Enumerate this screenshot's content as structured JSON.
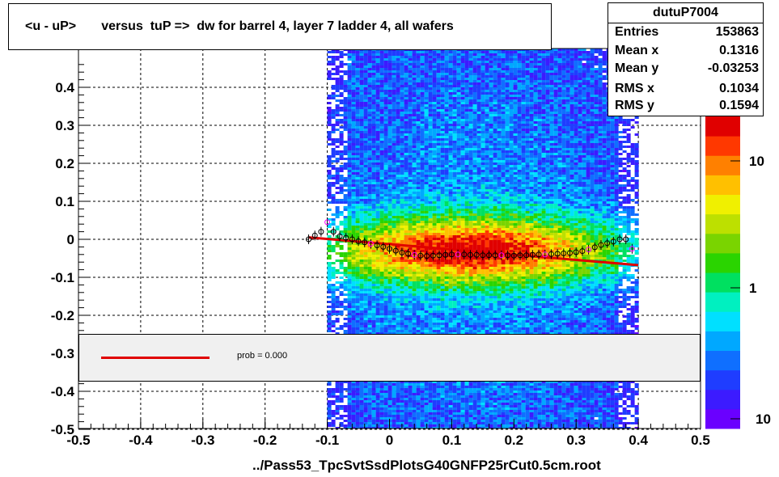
{
  "title": "<u - uP>       versus  tuP =>  dw for barrel 4, layer 7 ladder 4, all wafers",
  "stats": {
    "name": "dutuP7004",
    "rows": [
      {
        "label": "Entries",
        "value": "153863"
      },
      {
        "label": "Mean x",
        "value": "0.1316"
      },
      {
        "label": "Mean y",
        "value": "-0.03253"
      },
      {
        "label": "RMS x",
        "value": "0.1034"
      },
      {
        "label": "RMS y",
        "value": "0.1594"
      }
    ]
  },
  "legend": {
    "text": "prob = 0.000",
    "line_color": "#e00000"
  },
  "x_title": "../Pass53_TpcSvtSsdPlotsG40GNFP25rCut0.5cm.root",
  "colors": {
    "fit_line": "#e00000",
    "profile_marker": "#000000",
    "profile_marker_alt": "#ff00ff"
  },
  "chart_data": {
    "type": "heatmap",
    "x_range": [
      -0.5,
      0.5
    ],
    "y_range": [
      -0.5,
      0.5
    ],
    "x_ticks": [
      "-0.5",
      "-0.4",
      "-0.3",
      "-0.2",
      "-0.1",
      "0",
      "0.1",
      "0.2",
      "0.3",
      "0.4",
      "0.5"
    ],
    "y_ticks": [
      "-0.5",
      "-0.4",
      "-0.3",
      "-0.2",
      "-0.1",
      "0",
      "0.1",
      "0.2",
      "0.3",
      "0.4"
    ],
    "z_scale": "log",
    "z_ticks": [
      "10",
      "1",
      "10"
    ],
    "grid": true,
    "density": {
      "x_range": [
        -0.1,
        0.4
      ],
      "x_center": 0.13,
      "x_sigma": 0.1,
      "y_center": -0.03,
      "y_sigma": 0.16
    },
    "fit": {
      "type": "line",
      "x": [
        -0.13,
        0.4
      ],
      "y": [
        0.005,
        -0.068
      ]
    },
    "profile": {
      "x": [
        -0.13,
        -0.12,
        -0.11,
        -0.1,
        -0.09,
        -0.08,
        -0.07,
        -0.06,
        -0.05,
        -0.04,
        -0.03,
        -0.02,
        -0.01,
        0.0,
        0.01,
        0.02,
        0.03,
        0.04,
        0.05,
        0.06,
        0.07,
        0.08,
        0.09,
        0.1,
        0.11,
        0.12,
        0.13,
        0.14,
        0.15,
        0.16,
        0.17,
        0.18,
        0.19,
        0.2,
        0.21,
        0.22,
        0.23,
        0.24,
        0.25,
        0.26,
        0.27,
        0.28,
        0.29,
        0.3,
        0.31,
        0.32,
        0.33,
        0.34,
        0.35,
        0.36,
        0.37,
        0.38,
        0.39
      ],
      "y": [
        0.0,
        0.01,
        0.02,
        0.045,
        0.02,
        0.008,
        0.004,
        0.0,
        -0.005,
        -0.008,
        -0.012,
        -0.016,
        -0.02,
        -0.025,
        -0.03,
        -0.035,
        -0.038,
        -0.041,
        -0.043,
        -0.044,
        -0.043,
        -0.042,
        -0.041,
        -0.04,
        -0.04,
        -0.04,
        -0.041,
        -0.041,
        -0.042,
        -0.042,
        -0.042,
        -0.042,
        -0.042,
        -0.043,
        -0.042,
        -0.042,
        -0.041,
        -0.04,
        -0.04,
        -0.039,
        -0.038,
        -0.037,
        -0.036,
        -0.034,
        -0.031,
        -0.027,
        -0.021,
        -0.015,
        -0.01,
        -0.006,
        0.0,
        0.0,
        -0.025
      ]
    }
  }
}
